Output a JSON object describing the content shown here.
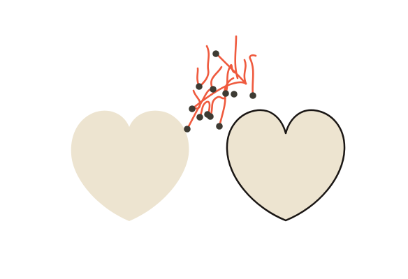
{
  "colors": {
    "background": "#ffffff",
    "heart_fill": "#ede4d0",
    "heart_outline": "#1a1614",
    "scribble": "#ef5a3e",
    "dot": "#3d3b33"
  },
  "icons": {
    "left_piece": "heart-icon",
    "right_piece": "heart-outline-icon",
    "cluster": "scribble-cluster-icon"
  },
  "pieces": {
    "left": {
      "state": "unselected",
      "outlined": false
    },
    "right": {
      "state": "selected",
      "outlined": true
    }
  },
  "cluster": {
    "stroke_count": 14,
    "dot_count": 12
  }
}
